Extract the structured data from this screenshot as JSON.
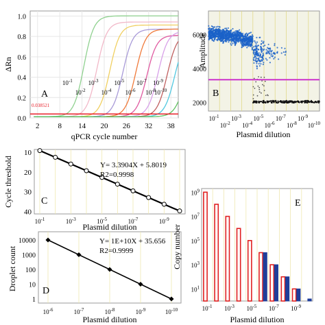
{
  "figure": {
    "background": "#ffffff"
  },
  "chart_data": [
    {
      "panel": "A",
      "type": "line",
      "xlabel": "qPCR cycle number",
      "ylabel": "ΔRn",
      "xticks": [
        "2",
        "8",
        "14",
        "20",
        "26",
        "32",
        "38"
      ],
      "xlim": [
        0,
        40
      ],
      "yticks": [
        "0.0",
        "0.2",
        "0.4",
        "0.6",
        "0.8",
        "1.0"
      ],
      "ylim": [
        0,
        1.05
      ],
      "threshold": {
        "label": "0.038521",
        "value": 0.038521,
        "color": "#e8202a"
      },
      "series": [
        {
          "name": "10-1",
          "midpoint": 14.5,
          "plateau": 0.99,
          "color": "#8fd18f"
        },
        {
          "name": "10-2",
          "midpoint": 18.0,
          "plateau": 0.93,
          "color": "#f2b8c8"
        },
        {
          "name": "10-3",
          "midpoint": 21.5,
          "plateau": 0.9,
          "color": "#f0cf60"
        },
        {
          "name": "10-4",
          "midpoint": 25.0,
          "plateau": 0.86,
          "color": "#a89ad8"
        },
        {
          "name": "10-5",
          "midpoint": 28.5,
          "plateau": 0.86,
          "color": "#f07a3a"
        },
        {
          "name": "10-6",
          "midpoint": 31.5,
          "plateau": 0.8,
          "color": "#e05aa0"
        },
        {
          "name": "10-7",
          "midpoint": 34.5,
          "plateau": 0.84,
          "color": "#d8a0e8"
        },
        {
          "name": "10-8",
          "midpoint": 37.0,
          "plateau": 0.82,
          "color": "#c06060"
        },
        {
          "name": "10-9",
          "midpoint": 39.0,
          "plateau": 0.79,
          "color": "#50c8e0"
        },
        {
          "name": "10-10",
          "midpoint": 41.5,
          "plateau": 0.6,
          "color": "#60c060"
        }
      ]
    },
    {
      "panel": "B",
      "type": "scatter",
      "xlabel": "Plasmid dilution",
      "ylabel": "Amplitude",
      "yticks": [
        "2000",
        "4000",
        "6000"
      ],
      "ylim": [
        1500,
        7400
      ],
      "threshold": {
        "value": 3350,
        "color": "#cc33cc"
      },
      "categories": [
        "10-1",
        "10-2",
        "10-3",
        "10-4",
        "10-5",
        "10-6",
        "10-7",
        "10-8",
        "10-9",
        "10-10"
      ],
      "positive": [
        {
          "category": "10-1",
          "center": 6050,
          "spread": 400,
          "count": 260
        },
        {
          "category": "10-2",
          "center": 5950,
          "spread": 400,
          "count": 260
        },
        {
          "category": "10-3",
          "center": 5850,
          "spread": 420,
          "count": 240
        },
        {
          "category": "10-4",
          "center": 5650,
          "spread": 450,
          "count": 220
        },
        {
          "category": "10-5",
          "center": 4900,
          "spread": 800,
          "count": 130
        },
        {
          "category": "10-6",
          "center": 5000,
          "spread": 600,
          "count": 40
        },
        {
          "category": "10-7",
          "center": 5000,
          "spread": 500,
          "count": 12
        }
      ],
      "negative_amplitude": 2050,
      "positive_color": "#1a62c8",
      "negative_color": "#111111"
    },
    {
      "panel": "C",
      "type": "line",
      "xlabel": "Plasmid dilution",
      "ylabel": "Cycle threshold",
      "xticks": [
        "10-1",
        "10-3",
        "10-5",
        "10-7",
        "10-9"
      ],
      "yticks": [
        "10",
        "20",
        "30",
        "40"
      ],
      "ylim": [
        40,
        10
      ],
      "equation": "Y= 3.3904X + 5.8019",
      "r2": "R2=0.9998",
      "x": [
        1,
        2,
        3,
        4,
        5,
        6,
        7,
        8,
        9,
        10
      ],
      "y": [
        9.19,
        12.58,
        15.97,
        19.36,
        22.77,
        26.16,
        29.55,
        32.94,
        36.33,
        39.72
      ]
    },
    {
      "panel": "D",
      "type": "line",
      "xlabel": "Plasmid dilution",
      "ylabel": "Droplet count",
      "xticks": [
        "10-6",
        "10-7",
        "10-8",
        "10-9",
        "10-10"
      ],
      "yticks": [
        "1",
        "10",
        "100",
        "1000",
        "10000"
      ],
      "ylim": [
        1,
        10000
      ],
      "equation": "Y= 1E+10X + 35.656",
      "r2": "R2=0.9999",
      "x": [
        6,
        7,
        8,
        9,
        10
      ],
      "y": [
        10000,
        1000,
        100,
        10,
        1
      ]
    },
    {
      "panel": "E",
      "type": "bar",
      "xlabel": "Plasmid dilution",
      "ylabel": "Copy number",
      "xticks": [
        "10-1",
        "10-3",
        "10-5",
        "10-7",
        "10-9"
      ],
      "ylim": [
        1,
        2000000000
      ],
      "categories": [
        "10-1",
        "10-2",
        "10-3",
        "10-4",
        "10-5",
        "10-6",
        "10-7",
        "10-8",
        "10-9",
        "10-10"
      ],
      "series": [
        {
          "color": "#e02020",
          "values": [
            1000000000,
            100000000,
            10000000,
            1000000,
            100000,
            10000,
            1000,
            100,
            10,
            null
          ]
        },
        {
          "color": "#1f3e9a",
          "values": [
            null,
            null,
            null,
            null,
            null,
            10000,
            1000,
            100,
            10,
            1
          ]
        }
      ]
    }
  ],
  "panel_letters": {
    "a": "A",
    "b": "B",
    "c": "C",
    "d": "D",
    "e": "E"
  }
}
